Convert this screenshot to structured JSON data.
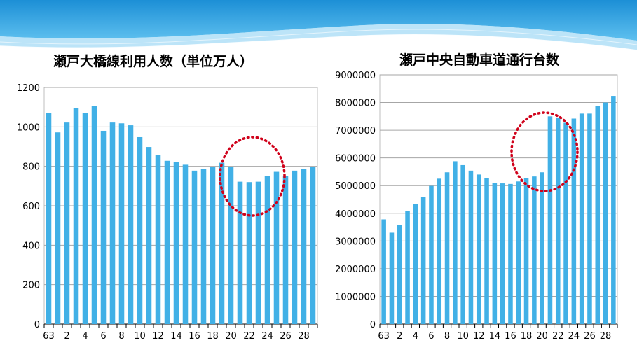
{
  "chart_data": [
    {
      "type": "bar",
      "title": "瀬戸大橋線利用人数（単位万人）",
      "categories": [
        "63",
        "1",
        "2",
        "3",
        "4",
        "5",
        "6",
        "7",
        "8",
        "9",
        "10",
        "11",
        "12",
        "13",
        "14",
        "15",
        "16",
        "17",
        "18",
        "19",
        "20",
        "21",
        "22",
        "23",
        "24",
        "25",
        "26",
        "27",
        "28",
        "29"
      ],
      "x_tick_labels": [
        "63",
        "2",
        "4",
        "6",
        "8",
        "10",
        "12",
        "14",
        "16",
        "18",
        "20",
        "22",
        "24",
        "26",
        "28"
      ],
      "values": [
        1072,
        972,
        1022,
        1097,
        1072,
        1107,
        980,
        1022,
        1018,
        1008,
        948,
        898,
        858,
        828,
        822,
        808,
        778,
        788,
        798,
        818,
        798,
        722,
        720,
        722,
        750,
        772,
        750,
        778,
        788,
        798
      ],
      "ylim": [
        0,
        1200
      ],
      "y_ticks": [
        "0",
        "200",
        "400",
        "600",
        "800",
        "1000",
        "1200"
      ],
      "grid": true,
      "bar_color": "#41b0e6",
      "annotation": {
        "shape": "dotted-ellipse",
        "color": "#d0021b"
      }
    },
    {
      "type": "bar",
      "title": "瀬戸中央自動車道通行台数",
      "categories": [
        "63",
        "1",
        "2",
        "3",
        "4",
        "5",
        "6",
        "7",
        "8",
        "9",
        "10",
        "11",
        "12",
        "13",
        "14",
        "15",
        "16",
        "17",
        "18",
        "19",
        "20",
        "21",
        "22",
        "23",
        "24",
        "25",
        "26",
        "27",
        "28",
        "29"
      ],
      "x_tick_labels": [
        "63",
        "2",
        "4",
        "6",
        "8",
        "10",
        "12",
        "14",
        "16",
        "18",
        "20",
        "22",
        "24",
        "26",
        "28"
      ],
      "values": [
        3780000,
        3300000,
        3580000,
        4080000,
        4340000,
        4600000,
        4990000,
        5250000,
        5480000,
        5880000,
        5740000,
        5540000,
        5400000,
        5260000,
        5100000,
        5080000,
        5060000,
        5150000,
        5260000,
        5330000,
        5480000,
        7500000,
        7460000,
        7270000,
        7420000,
        7600000,
        7600000,
        7880000,
        8000000,
        8240000
      ],
      "ylim": [
        0,
        9000000
      ],
      "y_ticks": [
        "0",
        "1000000",
        "2000000",
        "3000000",
        "4000000",
        "5000000",
        "6000000",
        "7000000",
        "8000000",
        "9000000"
      ],
      "grid": true,
      "bar_color": "#41b0e6",
      "annotation": {
        "shape": "dotted-ellipse",
        "color": "#d0021b"
      }
    }
  ]
}
